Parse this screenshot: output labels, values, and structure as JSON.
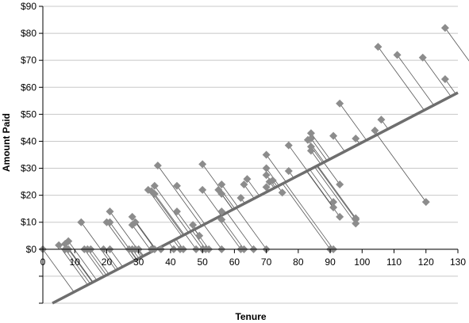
{
  "chart_data": {
    "type": "scatter",
    "title": "",
    "xlabel": "Tenure",
    "ylabel": "Amount Paid",
    "xlim": [
      0,
      130
    ],
    "ylim": [
      -20,
      90
    ],
    "grid": true,
    "x_ticks": [
      "0",
      "10",
      "20",
      "30",
      "40",
      "50",
      "60",
      "70",
      "80",
      "90",
      "100",
      "110",
      "120",
      "130"
    ],
    "y_ticks": [
      "$0",
      "$10",
      "$20",
      "$30",
      "$40",
      "$50",
      "$60",
      "$70",
      "$80",
      "$90"
    ],
    "colors": {
      "marker": "#8c8c8c",
      "fit_line": "#6e6e6e",
      "residual": "#555555",
      "grid": "#c8c8c8"
    },
    "fit_line": {
      "x": [
        3,
        130
      ],
      "y": [
        -20,
        58
      ]
    },
    "points": [
      {
        "x": 0,
        "y": 0
      },
      {
        "x": 5,
        "y": 1.5
      },
      {
        "x": 7,
        "y": 2
      },
      {
        "x": 8,
        "y": 3
      },
      {
        "x": 7,
        "y": 0
      },
      {
        "x": 8,
        "y": 0
      },
      {
        "x": 12,
        "y": 10
      },
      {
        "x": 13,
        "y": 0
      },
      {
        "x": 14,
        "y": 0
      },
      {
        "x": 15,
        "y": 0
      },
      {
        "x": 19,
        "y": 0
      },
      {
        "x": 20,
        "y": 10
      },
      {
        "x": 21,
        "y": 10
      },
      {
        "x": 21,
        "y": 14
      },
      {
        "x": 21,
        "y": 0
      },
      {
        "x": 27,
        "y": 0
      },
      {
        "x": 28,
        "y": 0
      },
      {
        "x": 28,
        "y": 12
      },
      {
        "x": 28,
        "y": 9
      },
      {
        "x": 29,
        "y": 10
      },
      {
        "x": 29,
        "y": 0
      },
      {
        "x": 30,
        "y": 0
      },
      {
        "x": 33,
        "y": 22
      },
      {
        "x": 34,
        "y": 21.5
      },
      {
        "x": 35,
        "y": 20.5
      },
      {
        "x": 35,
        "y": 23.5
      },
      {
        "x": 36,
        "y": 31
      },
      {
        "x": 35,
        "y": 0
      },
      {
        "x": 37,
        "y": 0
      },
      {
        "x": 34,
        "y": 0
      },
      {
        "x": 41,
        "y": 0
      },
      {
        "x": 42,
        "y": 23.5
      },
      {
        "x": 42,
        "y": 14
      },
      {
        "x": 43,
        "y": 0
      },
      {
        "x": 44,
        "y": 0
      },
      {
        "x": 47,
        "y": 9
      },
      {
        "x": 48,
        "y": 0
      },
      {
        "x": 49,
        "y": 5
      },
      {
        "x": 50,
        "y": 0
      },
      {
        "x": 50,
        "y": 22
      },
      {
        "x": 50,
        "y": 31.5
      },
      {
        "x": 51,
        "y": 0
      },
      {
        "x": 52,
        "y": 0
      },
      {
        "x": 55,
        "y": 22
      },
      {
        "x": 56,
        "y": 24
      },
      {
        "x": 56,
        "y": 20.5
      },
      {
        "x": 56,
        "y": 14
      },
      {
        "x": 56,
        "y": 0
      },
      {
        "x": 56,
        "y": 11
      },
      {
        "x": 62,
        "y": 19
      },
      {
        "x": 62,
        "y": 0
      },
      {
        "x": 63,
        "y": 0
      },
      {
        "x": 63,
        "y": 24
      },
      {
        "x": 64,
        "y": 26
      },
      {
        "x": 66,
        "y": 0
      },
      {
        "x": 70,
        "y": 0
      },
      {
        "x": 70,
        "y": 35
      },
      {
        "x": 70,
        "y": 30
      },
      {
        "x": 70,
        "y": 27.5
      },
      {
        "x": 70,
        "y": 23
      },
      {
        "x": 71,
        "y": 25
      },
      {
        "x": 72,
        "y": 25.5
      },
      {
        "x": 75,
        "y": 21
      },
      {
        "x": 77,
        "y": 29
      },
      {
        "x": 77,
        "y": 38.5
      },
      {
        "x": 83,
        "y": 40.5
      },
      {
        "x": 84,
        "y": 43
      },
      {
        "x": 84,
        "y": 41
      },
      {
        "x": 84,
        "y": 36.5
      },
      {
        "x": 84,
        "y": 38
      },
      {
        "x": 90,
        "y": 0
      },
      {
        "x": 91,
        "y": 0
      },
      {
        "x": 91,
        "y": 17.5
      },
      {
        "x": 91,
        "y": 15.5
      },
      {
        "x": 91,
        "y": 42
      },
      {
        "x": 93,
        "y": 54
      },
      {
        "x": 93,
        "y": 24
      },
      {
        "x": 93,
        "y": 12
      },
      {
        "x": 98,
        "y": 11.5
      },
      {
        "x": 98,
        "y": 11
      },
      {
        "x": 98,
        "y": 9.5
      },
      {
        "x": 98,
        "y": 41
      },
      {
        "x": 104,
        "y": 44
      },
      {
        "x": 106,
        "y": 48
      },
      {
        "x": 105,
        "y": 75
      },
      {
        "x": 111,
        "y": 72
      },
      {
        "x": 119,
        "y": 71
      },
      {
        "x": 120,
        "y": 17.5
      },
      {
        "x": 126,
        "y": 82
      },
      {
        "x": 126,
        "y": 63
      }
    ]
  }
}
